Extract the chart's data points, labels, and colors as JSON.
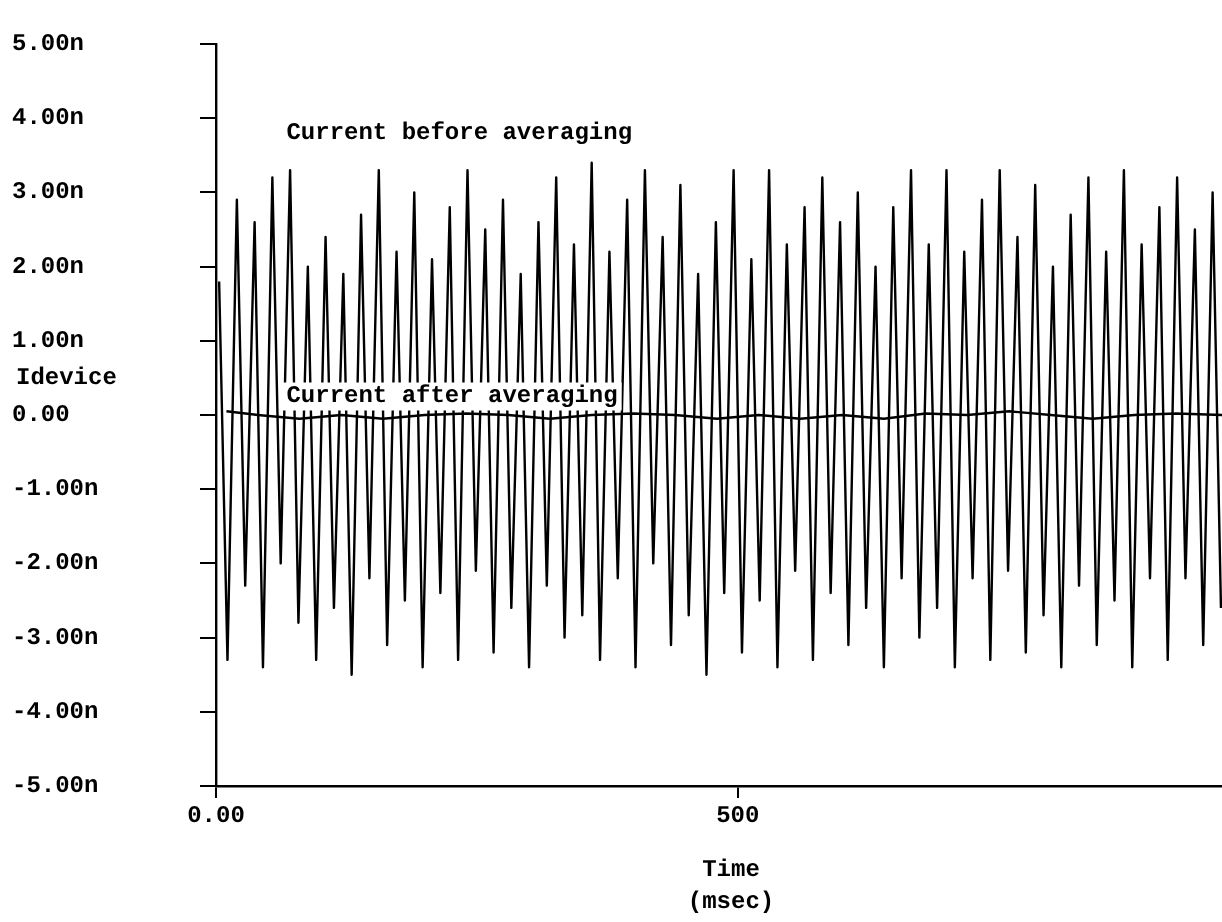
{
  "chart_data": {
    "type": "line",
    "xlabel": "Time\n(msec)",
    "ylabel": "Idevice",
    "xlim": [
      0,
      964
    ],
    "xticks": [
      {
        "value": 0,
        "label": "0.00"
      },
      500
    ],
    "ylim": [
      -5,
      5
    ],
    "yticks": [
      {
        "value": -5,
        "label": "-5.00n"
      },
      {
        "value": -4,
        "label": "-4.00n"
      },
      {
        "value": -3,
        "label": "-3.00n"
      },
      {
        "value": -2,
        "label": "-2.00n"
      },
      {
        "value": -1,
        "label": "-1.00n"
      },
      {
        "value": 0,
        "label": "0.00"
      },
      {
        "value": 1,
        "label": "1.00n"
      },
      {
        "value": 2,
        "label": "2.00n"
      },
      {
        "value": 3,
        "label": "3.00n"
      },
      {
        "value": 4,
        "label": "4.00n"
      },
      {
        "value": 5,
        "label": "5.00n"
      }
    ],
    "grid": false,
    "legend": false,
    "marker": "none",
    "series": [
      {
        "name": "Current before averaging",
        "color": "#000000",
        "x": [
          3,
          11,
          20,
          28,
          37,
          45,
          54,
          62,
          71,
          79,
          88,
          96,
          105,
          113,
          122,
          130,
          139,
          147,
          156,
          164,
          173,
          181,
          190,
          198,
          207,
          215,
          224,
          232,
          241,
          249,
          258,
          266,
          275,
          283,
          292,
          300,
          309,
          317,
          326,
          334,
          343,
          351,
          360,
          368,
          377,
          385,
          394,
          402,
          411,
          419,
          428,
          436,
          445,
          453,
          462,
          470,
          479,
          487,
          496,
          504,
          513,
          521,
          530,
          538,
          547,
          555,
          564,
          572,
          581,
          589,
          598,
          606,
          615,
          623,
          632,
          640,
          649,
          657,
          666,
          674,
          683,
          691,
          700,
          708,
          717,
          725,
          734,
          742,
          751,
          759,
          768,
          776,
          785,
          793,
          802,
          810,
          819,
          827,
          836,
          844,
          853,
          861,
          870,
          878,
          887,
          895,
          904,
          912,
          921,
          929,
          938,
          946,
          955,
          963
        ],
        "values": [
          1.8,
          -3.3,
          2.9,
          -2.3,
          2.6,
          -3.4,
          3.2,
          -2.0,
          3.3,
          -2.8,
          2.0,
          -3.3,
          2.4,
          -2.6,
          1.9,
          -3.5,
          2.7,
          -2.2,
          3.3,
          -3.1,
          2.2,
          -2.5,
          3.0,
          -3.4,
          2.1,
          -2.4,
          2.8,
          -3.3,
          3.3,
          -2.1,
          2.5,
          -3.2,
          2.9,
          -2.6,
          1.9,
          -3.4,
          2.6,
          -2.3,
          3.2,
          -3.0,
          2.3,
          -2.7,
          3.4,
          -3.3,
          2.2,
          -2.2,
          2.9,
          -3.4,
          3.3,
          -2.0,
          2.4,
          -3.1,
          3.1,
          -2.7,
          1.9,
          -3.5,
          2.6,
          -2.4,
          3.3,
          -3.2,
          2.1,
          -2.5,
          3.3,
          -3.4,
          2.3,
          -2.1,
          2.8,
          -3.3,
          3.2,
          -2.4,
          2.6,
          -3.1,
          3.0,
          -2.6,
          2.0,
          -3.4,
          2.8,
          -2.2,
          3.3,
          -3.0,
          2.3,
          -2.6,
          3.3,
          -3.4,
          2.2,
          -2.2,
          2.9,
          -3.3,
          3.3,
          -2.1,
          2.4,
          -3.2,
          3.1,
          -2.7,
          2.0,
          -3.4,
          2.7,
          -2.3,
          3.2,
          -3.1,
          2.2,
          -2.5,
          3.3,
          -3.4,
          2.3,
          -2.2,
          2.8,
          -3.3,
          3.2,
          -2.2,
          2.5,
          -3.1,
          3.0,
          -2.6
        ]
      },
      {
        "name": "Current after averaging",
        "color": "#000000",
        "x": [
          10,
          40,
          80,
          120,
          160,
          200,
          240,
          280,
          320,
          360,
          400,
          440,
          480,
          520,
          560,
          600,
          640,
          680,
          720,
          760,
          800,
          840,
          880,
          920,
          964
        ],
        "values": [
          0.05,
          0.0,
          -0.05,
          0.0,
          -0.05,
          0.0,
          0.02,
          0.0,
          -0.05,
          0.0,
          0.02,
          0.0,
          -0.05,
          0.0,
          -0.05,
          0.0,
          -0.05,
          0.02,
          0.0,
          0.05,
          0.0,
          -0.05,
          0.0,
          0.02,
          0.0
        ]
      }
    ]
  }
}
